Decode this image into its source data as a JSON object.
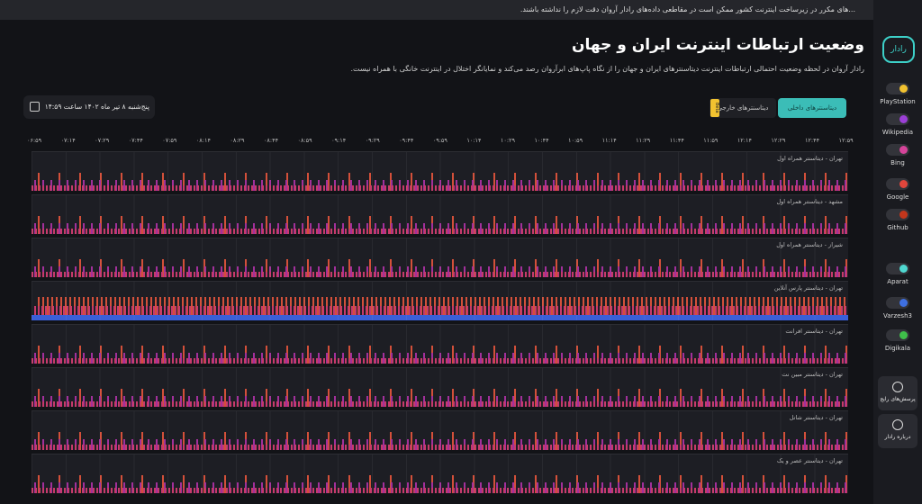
{
  "banner": {
    "text": "...های مکرر در زیرساخت اینترنت کشور ممکن است در مقاطعی داده‌های رادار آروان دقت لازم را نداشته باشند."
  },
  "header": {
    "title": "وضعیت ارتباطات اینترنت ایران و جهان",
    "subtitle": "رادار آروان در لحظه وضعیت احتمالی ارتباطات اینترنت دیتاسنترهای ایران و جهان را از نگاه پاپ‌های ابرآروان رصد می‌کند و نمایانگر اختلال در اینترنت خانگی با همراه نیست.",
    "logo": "رادار"
  },
  "date": "پنج‌شنبه ۸ تیر ماه ۱۴۰۲ ساعت ۱۴:۵۹",
  "tabs": [
    {
      "label": "دیتاسنترهای داخلی"
    },
    {
      "label": "دیتاسنترهای خارجی",
      "badge": "Beta"
    }
  ],
  "times": [
    "۰۶:۵۹",
    "۰۷:۱۴",
    "۰۷:۲۹",
    "۰۷:۴۴",
    "۰۷:۵۹",
    "۰۸:۱۴",
    "۰۸:۲۹",
    "۰۸:۴۴",
    "۰۸:۵۹",
    "۰۹:۱۴",
    "۰۹:۲۹",
    "۰۹:۴۴",
    "۰۹:۵۹",
    "۱۰:۱۴",
    "۱۰:۲۹",
    "۱۰:۴۴",
    "۱۰:۵۹",
    "۱۱:۱۴",
    "۱۱:۲۹",
    "۱۱:۴۴",
    "۱۱:۵۹",
    "۱۲:۱۴",
    "۱۲:۲۹",
    "۱۲:۴۴",
    "۱۲:۵۹"
  ],
  "rows": [
    "تهران - دیتاسنتر همراه اول",
    "مشهد - دیتاسنتر همراه اول",
    "شیراز - دیتاسنتر همراه اول",
    "تهران - دیتاسنتر پارس آنلاین",
    "تهران - دیتاسنتر افرانت",
    "تهران - دیتاسنتر مبین نت",
    "تهران - دیتاسنتر شاتل",
    "تهران - دیتاسنتر عصر و یک"
  ],
  "legend": [
    {
      "name": "PlayStation",
      "color": "#f2c230"
    },
    {
      "name": "Wikipedia",
      "color": "#9b3fd6"
    },
    {
      "name": "Bing",
      "color": "#d6449a"
    },
    {
      "name": "Google",
      "color": "#e0463c"
    },
    {
      "name": "Github",
      "color": "#c2361c"
    },
    {
      "name": "Aparat",
      "color": "#4fd8d0"
    },
    {
      "name": "Varzesh3",
      "color": "#3e6fe0"
    },
    {
      "name": "Digikala",
      "color": "#3fbf4a"
    }
  ],
  "buttons": [
    "پرسش‌های رایج",
    "درباره رادار"
  ]
}
